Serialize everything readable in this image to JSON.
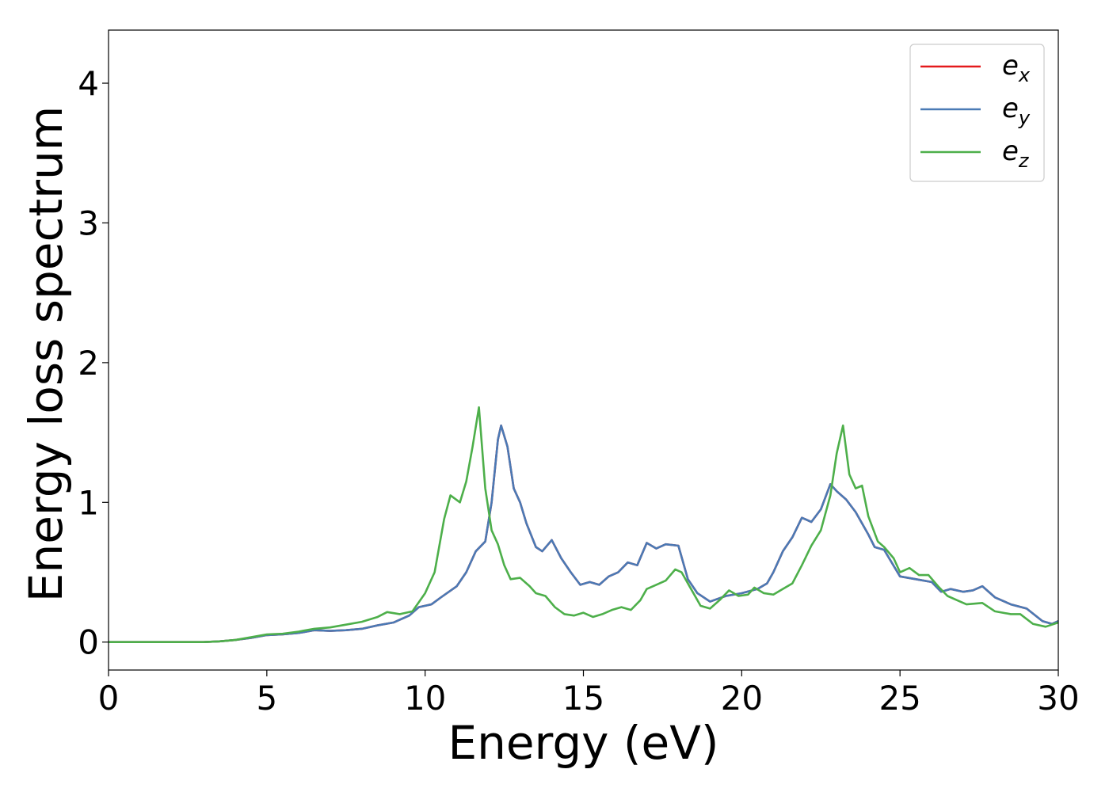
{
  "chart_data": {
    "type": "line",
    "xlabel": "Energy (eV)",
    "ylabel": "Energy loss spectrum",
    "xlim": [
      0,
      30
    ],
    "ylim": [
      -0.2,
      4.38
    ],
    "x_ticks": [
      "0",
      "5",
      "10",
      "15",
      "20",
      "25",
      "30"
    ],
    "y_ticks": [
      "0",
      "1",
      "2",
      "3",
      "4"
    ],
    "grid": false,
    "legend_position": "top-right",
    "series": [
      {
        "name": "e_x",
        "label_base": "e",
        "label_sub": "x",
        "color": "#e41a1c",
        "points": [
          [
            0,
            0
          ],
          [
            1,
            0
          ],
          [
            2,
            0
          ],
          [
            3,
            0
          ],
          [
            3.5,
            0.005
          ],
          [
            4,
            0.015
          ],
          [
            4.5,
            0.03
          ],
          [
            5,
            0.05
          ],
          [
            5.5,
            0.055
          ],
          [
            6,
            0.065
          ],
          [
            6.5,
            0.085
          ],
          [
            7,
            0.08
          ],
          [
            7.5,
            0.085
          ],
          [
            8,
            0.095
          ],
          [
            8.5,
            0.12
          ],
          [
            9,
            0.14
          ],
          [
            9.5,
            0.19
          ],
          [
            9.8,
            0.25
          ],
          [
            10.2,
            0.27
          ],
          [
            10.5,
            0.32
          ],
          [
            11,
            0.4
          ],
          [
            11.3,
            0.5
          ],
          [
            11.6,
            0.65
          ],
          [
            11.9,
            0.72
          ],
          [
            12.1,
            1.0
          ],
          [
            12.3,
            1.45
          ],
          [
            12.4,
            1.55
          ],
          [
            12.6,
            1.4
          ],
          [
            12.8,
            1.1
          ],
          [
            13.0,
            1.0
          ],
          [
            13.2,
            0.85
          ],
          [
            13.5,
            0.68
          ],
          [
            13.7,
            0.65
          ],
          [
            14.0,
            0.73
          ],
          [
            14.3,
            0.6
          ],
          [
            14.6,
            0.5
          ],
          [
            14.9,
            0.41
          ],
          [
            15.2,
            0.43
          ],
          [
            15.5,
            0.41
          ],
          [
            15.8,
            0.47
          ],
          [
            16.1,
            0.5
          ],
          [
            16.4,
            0.57
          ],
          [
            16.7,
            0.55
          ],
          [
            17.0,
            0.71
          ],
          [
            17.3,
            0.67
          ],
          [
            17.6,
            0.7
          ],
          [
            18.0,
            0.69
          ],
          [
            18.3,
            0.45
          ],
          [
            18.6,
            0.35
          ],
          [
            19.0,
            0.29
          ],
          [
            19.5,
            0.33
          ],
          [
            20.0,
            0.35
          ],
          [
            20.5,
            0.38
          ],
          [
            20.8,
            0.42
          ],
          [
            21.0,
            0.5
          ],
          [
            21.3,
            0.65
          ],
          [
            21.6,
            0.75
          ],
          [
            21.9,
            0.89
          ],
          [
            22.2,
            0.86
          ],
          [
            22.5,
            0.95
          ],
          [
            22.8,
            1.13
          ],
          [
            23.0,
            1.08
          ],
          [
            23.3,
            1.02
          ],
          [
            23.6,
            0.93
          ],
          [
            24.0,
            0.77
          ],
          [
            24.2,
            0.68
          ],
          [
            24.5,
            0.66
          ],
          [
            25.0,
            0.47
          ],
          [
            25.5,
            0.45
          ],
          [
            26.0,
            0.43
          ],
          [
            26.3,
            0.36
          ],
          [
            26.6,
            0.38
          ],
          [
            27.0,
            0.36
          ],
          [
            27.3,
            0.37
          ],
          [
            27.6,
            0.4
          ],
          [
            28.0,
            0.32
          ],
          [
            28.5,
            0.27
          ],
          [
            29.0,
            0.24
          ],
          [
            29.5,
            0.15
          ],
          [
            29.8,
            0.13
          ],
          [
            30,
            0.15
          ]
        ]
      },
      {
        "name": "e_y",
        "label_base": "e",
        "label_sub": "y",
        "color": "#4a7ab5",
        "points": [
          [
            0,
            0
          ],
          [
            1,
            0
          ],
          [
            2,
            0
          ],
          [
            3,
            0
          ],
          [
            3.5,
            0.005
          ],
          [
            4,
            0.015
          ],
          [
            4.5,
            0.03
          ],
          [
            5,
            0.05
          ],
          [
            5.5,
            0.055
          ],
          [
            6,
            0.065
          ],
          [
            6.5,
            0.085
          ],
          [
            7,
            0.08
          ],
          [
            7.5,
            0.085
          ],
          [
            8,
            0.095
          ],
          [
            8.5,
            0.12
          ],
          [
            9,
            0.14
          ],
          [
            9.5,
            0.19
          ],
          [
            9.8,
            0.25
          ],
          [
            10.2,
            0.27
          ],
          [
            10.5,
            0.32
          ],
          [
            11,
            0.4
          ],
          [
            11.3,
            0.5
          ],
          [
            11.6,
            0.65
          ],
          [
            11.9,
            0.72
          ],
          [
            12.1,
            1.0
          ],
          [
            12.3,
            1.45
          ],
          [
            12.4,
            1.55
          ],
          [
            12.6,
            1.4
          ],
          [
            12.8,
            1.1
          ],
          [
            13.0,
            1.0
          ],
          [
            13.2,
            0.85
          ],
          [
            13.5,
            0.68
          ],
          [
            13.7,
            0.65
          ],
          [
            14.0,
            0.73
          ],
          [
            14.3,
            0.6
          ],
          [
            14.6,
            0.5
          ],
          [
            14.9,
            0.41
          ],
          [
            15.2,
            0.43
          ],
          [
            15.5,
            0.41
          ],
          [
            15.8,
            0.47
          ],
          [
            16.1,
            0.5
          ],
          [
            16.4,
            0.57
          ],
          [
            16.7,
            0.55
          ],
          [
            17.0,
            0.71
          ],
          [
            17.3,
            0.67
          ],
          [
            17.6,
            0.7
          ],
          [
            18.0,
            0.69
          ],
          [
            18.3,
            0.45
          ],
          [
            18.6,
            0.35
          ],
          [
            19.0,
            0.29
          ],
          [
            19.5,
            0.33
          ],
          [
            20.0,
            0.35
          ],
          [
            20.5,
            0.38
          ],
          [
            20.8,
            0.42
          ],
          [
            21.0,
            0.5
          ],
          [
            21.3,
            0.65
          ],
          [
            21.6,
            0.75
          ],
          [
            21.9,
            0.89
          ],
          [
            22.2,
            0.86
          ],
          [
            22.5,
            0.95
          ],
          [
            22.8,
            1.13
          ],
          [
            23.0,
            1.08
          ],
          [
            23.3,
            1.02
          ],
          [
            23.6,
            0.93
          ],
          [
            24.0,
            0.77
          ],
          [
            24.2,
            0.68
          ],
          [
            24.5,
            0.66
          ],
          [
            25.0,
            0.47
          ],
          [
            25.5,
            0.45
          ],
          [
            26.0,
            0.43
          ],
          [
            26.3,
            0.36
          ],
          [
            26.6,
            0.38
          ],
          [
            27.0,
            0.36
          ],
          [
            27.3,
            0.37
          ],
          [
            27.6,
            0.4
          ],
          [
            28.0,
            0.32
          ],
          [
            28.5,
            0.27
          ],
          [
            29.0,
            0.24
          ],
          [
            29.5,
            0.15
          ],
          [
            29.8,
            0.13
          ],
          [
            30,
            0.15
          ]
        ]
      },
      {
        "name": "e_z",
        "label_base": "e",
        "label_sub": "z",
        "color": "#4daf4a",
        "points": [
          [
            0,
            0
          ],
          [
            1,
            0
          ],
          [
            2,
            0
          ],
          [
            3,
            0
          ],
          [
            3.5,
            0.005
          ],
          [
            4,
            0.015
          ],
          [
            4.5,
            0.035
          ],
          [
            5,
            0.055
          ],
          [
            5.5,
            0.06
          ],
          [
            6,
            0.075
          ],
          [
            6.5,
            0.095
          ],
          [
            7,
            0.105
          ],
          [
            7.5,
            0.125
          ],
          [
            8,
            0.145
          ],
          [
            8.5,
            0.18
          ],
          [
            8.8,
            0.215
          ],
          [
            9.2,
            0.2
          ],
          [
            9.6,
            0.22
          ],
          [
            10.0,
            0.35
          ],
          [
            10.3,
            0.5
          ],
          [
            10.6,
            0.88
          ],
          [
            10.8,
            1.05
          ],
          [
            11.1,
            1.0
          ],
          [
            11.3,
            1.15
          ],
          [
            11.5,
            1.4
          ],
          [
            11.7,
            1.68
          ],
          [
            11.9,
            1.1
          ],
          [
            12.1,
            0.8
          ],
          [
            12.3,
            0.7
          ],
          [
            12.5,
            0.55
          ],
          [
            12.7,
            0.45
          ],
          [
            13.0,
            0.46
          ],
          [
            13.3,
            0.4
          ],
          [
            13.5,
            0.35
          ],
          [
            13.8,
            0.33
          ],
          [
            14.1,
            0.25
          ],
          [
            14.4,
            0.2
          ],
          [
            14.7,
            0.19
          ],
          [
            15.0,
            0.21
          ],
          [
            15.3,
            0.18
          ],
          [
            15.6,
            0.2
          ],
          [
            15.9,
            0.23
          ],
          [
            16.2,
            0.25
          ],
          [
            16.5,
            0.23
          ],
          [
            16.8,
            0.3
          ],
          [
            17.0,
            0.38
          ],
          [
            17.3,
            0.41
          ],
          [
            17.6,
            0.44
          ],
          [
            17.9,
            0.52
          ],
          [
            18.1,
            0.5
          ],
          [
            18.4,
            0.38
          ],
          [
            18.7,
            0.26
          ],
          [
            19.0,
            0.24
          ],
          [
            19.3,
            0.3
          ],
          [
            19.6,
            0.37
          ],
          [
            19.9,
            0.33
          ],
          [
            20.2,
            0.34
          ],
          [
            20.4,
            0.39
          ],
          [
            20.7,
            0.35
          ],
          [
            21.0,
            0.34
          ],
          [
            21.3,
            0.38
          ],
          [
            21.6,
            0.42
          ],
          [
            21.9,
            0.55
          ],
          [
            22.2,
            0.69
          ],
          [
            22.5,
            0.8
          ],
          [
            22.8,
            1.05
          ],
          [
            23.0,
            1.35
          ],
          [
            23.2,
            1.55
          ],
          [
            23.4,
            1.2
          ],
          [
            23.6,
            1.1
          ],
          [
            23.8,
            1.12
          ],
          [
            24.0,
            0.9
          ],
          [
            24.3,
            0.72
          ],
          [
            24.5,
            0.68
          ],
          [
            24.8,
            0.6
          ],
          [
            25.0,
            0.5
          ],
          [
            25.3,
            0.53
          ],
          [
            25.6,
            0.48
          ],
          [
            25.9,
            0.48
          ],
          [
            26.2,
            0.4
          ],
          [
            26.5,
            0.33
          ],
          [
            26.8,
            0.3
          ],
          [
            27.1,
            0.27
          ],
          [
            27.6,
            0.28
          ],
          [
            28.0,
            0.22
          ],
          [
            28.5,
            0.2
          ],
          [
            28.8,
            0.2
          ],
          [
            29.2,
            0.13
          ],
          [
            29.6,
            0.11
          ],
          [
            30,
            0.14
          ]
        ]
      }
    ]
  }
}
